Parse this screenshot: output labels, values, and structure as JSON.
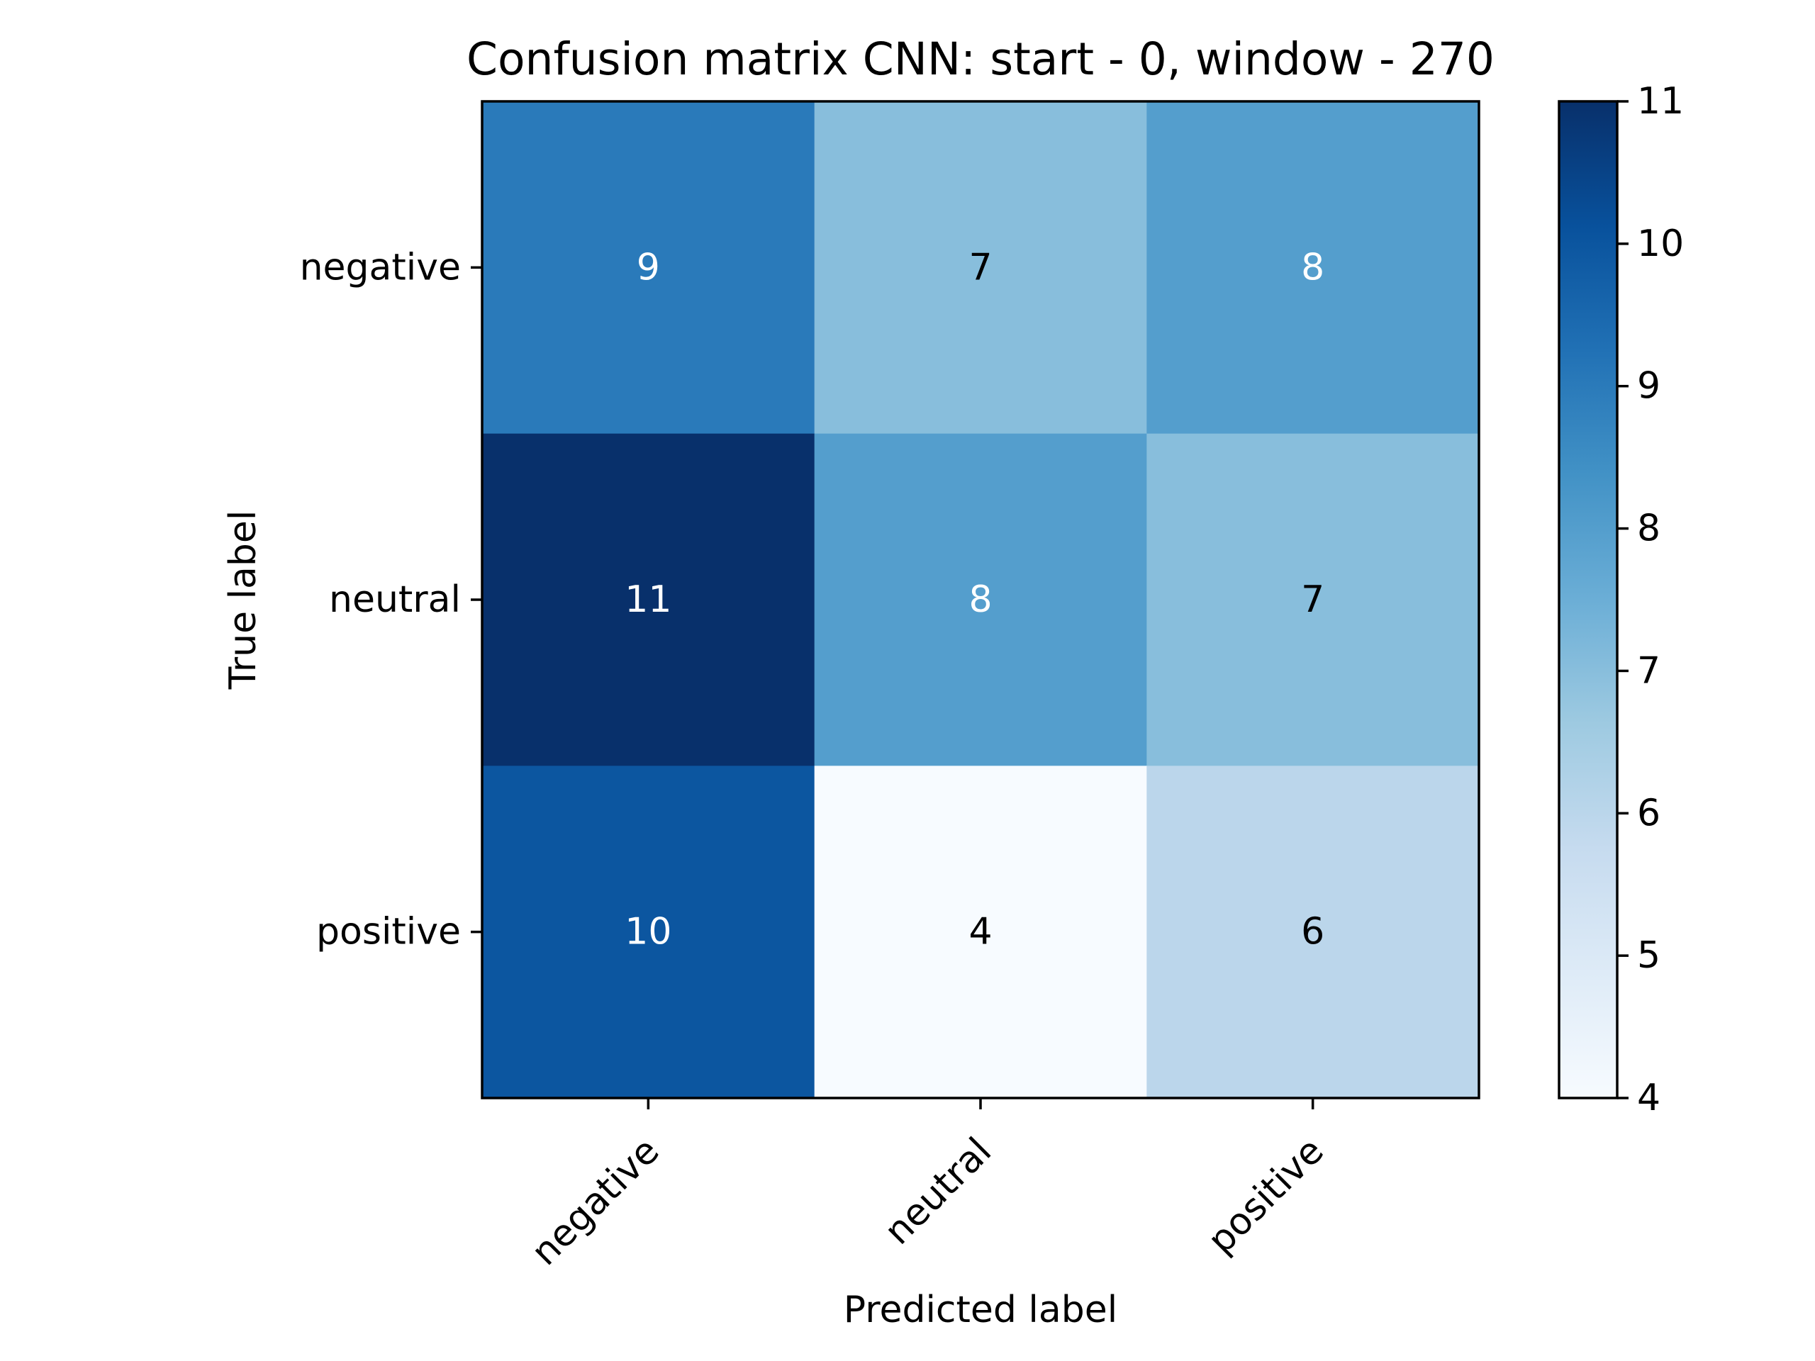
{
  "chart_data": {
    "type": "heatmap",
    "title": "Confusion matrix CNN: start - 0, window - 270",
    "xlabel": "Predicted label",
    "ylabel": "True label",
    "x_categories": [
      "negative",
      "neutral",
      "positive"
    ],
    "y_categories": [
      "negative",
      "neutral",
      "positive"
    ],
    "values": [
      [
        9,
        7,
        8
      ],
      [
        11,
        8,
        7
      ],
      [
        10,
        4,
        6
      ]
    ],
    "colormap": "Blues",
    "colorbar": {
      "range": [
        4,
        11
      ],
      "ticks": [
        "4",
        "5",
        "6",
        "7",
        "8",
        "9",
        "10",
        "11"
      ]
    },
    "grid": false
  }
}
